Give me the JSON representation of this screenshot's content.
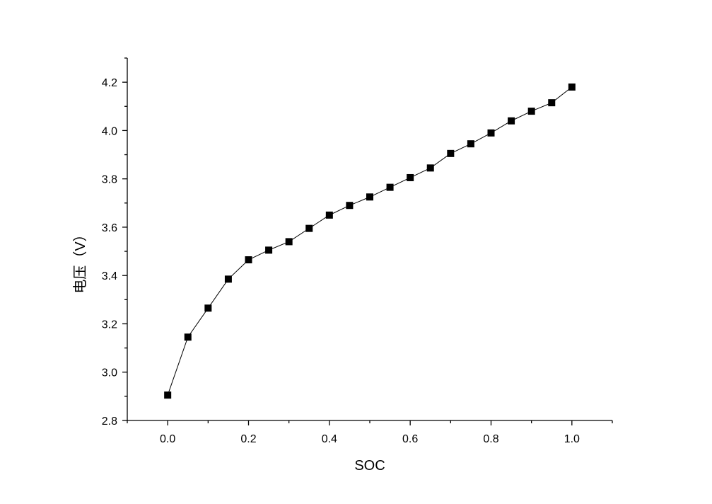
{
  "chart_data": {
    "type": "line",
    "title": "",
    "xlabel": "SOC",
    "ylabel": "电压（V）",
    "xlim": [
      -0.1,
      1.1
    ],
    "ylim": [
      2.8,
      4.3
    ],
    "x_ticks": [
      0.0,
      0.2,
      0.4,
      0.6,
      0.8,
      1.0
    ],
    "x_tick_labels": [
      "0.0",
      "0.2",
      "0.4",
      "0.6",
      "0.8",
      "1.0"
    ],
    "y_ticks": [
      2.8,
      3.0,
      3.2,
      3.4,
      3.6,
      3.8,
      4.0,
      4.2
    ],
    "y_tick_labels": [
      "2.8",
      "3.0",
      "3.2",
      "3.4",
      "3.6",
      "3.8",
      "4.0",
      "4.2"
    ],
    "grid": false,
    "marker": "square",
    "series": [
      {
        "x": [
          0.0,
          0.05,
          0.1,
          0.15,
          0.2,
          0.25,
          0.3,
          0.35,
          0.4,
          0.45,
          0.5,
          0.55,
          0.6,
          0.65,
          0.7,
          0.75,
          0.8,
          0.85,
          0.9,
          0.95,
          1.0
        ],
        "y": [
          2.905,
          3.145,
          3.265,
          3.385,
          3.465,
          3.505,
          3.54,
          3.595,
          3.65,
          3.69,
          3.725,
          3.765,
          3.805,
          3.845,
          3.905,
          3.945,
          3.99,
          4.04,
          4.08,
          4.115,
          4.18
        ]
      }
    ]
  }
}
